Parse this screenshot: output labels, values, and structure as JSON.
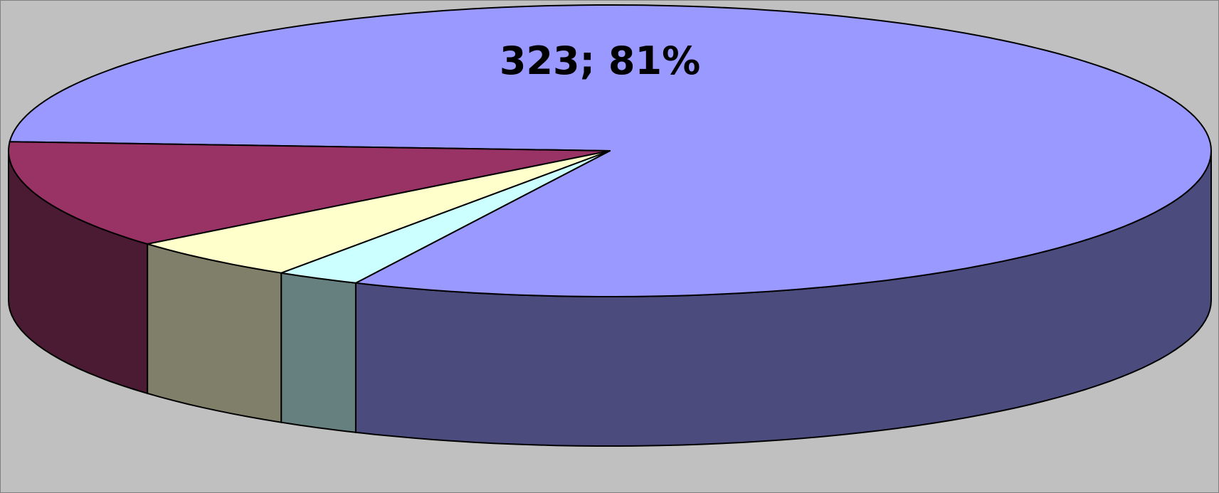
{
  "chart_data": {
    "type": "pie",
    "style": "3d",
    "start_angle_deg": 115,
    "direction": "counter-clockwise",
    "background": "#c0c0c0",
    "slices": [
      {
        "value": 323,
        "percent": 81,
        "label": "323; 81%",
        "top_color": "#9999ff",
        "side_color": "#4b4b7d"
      },
      {
        "value": 48,
        "percent": 12,
        "label": "",
        "top_color": "#993366",
        "side_color": "#4b1a33"
      },
      {
        "value": 19,
        "percent": 5,
        "label": "",
        "top_color": "#ffffcc",
        "side_color": "#80806a"
      },
      {
        "value": 9,
        "percent": 2,
        "label": "",
        "top_color": "#ccffff",
        "side_color": "#66807f"
      }
    ]
  }
}
